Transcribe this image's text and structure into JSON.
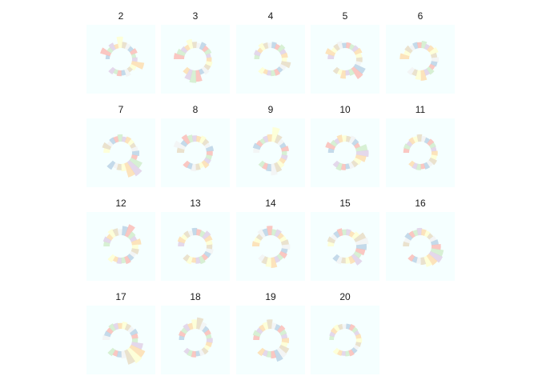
{
  "colors": {
    "panel_bg": "#f5ffff",
    "palette": [
      "#b3cde3",
      "#fbb4ae",
      "#ccebc5",
      "#decbe4",
      "#fed9a6",
      "#ffffcc",
      "#e5d8bd",
      "#f2f2f2"
    ]
  },
  "chart_data": {
    "type": "polar-bar small multiples",
    "grid": false,
    "legend": "none",
    "panels": [
      {
        "title": "2",
        "values": [
          0.2,
          0.5,
          0.25,
          0.35,
          0.22,
          0.55,
          0.3,
          0.28,
          0.24,
          0.32,
          0.2,
          0.26,
          0.6,
          0.3,
          0.22,
          0.35,
          0.25,
          0.28,
          0.22,
          0.3
        ]
      },
      {
        "title": "3",
        "values": [
          0.5,
          0.4,
          0.3,
          0.25,
          0.45,
          0.3,
          0.25,
          0.35,
          0.28,
          0.3,
          0.22,
          0.25,
          0.3,
          0.28,
          0.35,
          0.25,
          0.55,
          0.6,
          0.5,
          0.3
        ]
      },
      {
        "title": "4",
        "values": [
          0.25,
          0.3,
          0.22,
          0.35,
          0.28,
          0.25,
          0.3,
          0.25,
          0.35,
          0.28,
          0.3,
          0.25,
          0.45,
          0.3,
          0.25,
          0.3,
          0.28,
          0.25,
          0.22,
          0.3
        ]
      },
      {
        "title": "5",
        "values": [
          0.3,
          0.45,
          0.25,
          0.3,
          0.35,
          0.25,
          0.28,
          0.25,
          0.3,
          0.35,
          0.28,
          0.3,
          0.25,
          0.55,
          0.6,
          0.3,
          0.25,
          0.4,
          0.25,
          0.28
        ]
      },
      {
        "title": "6",
        "values": [
          0.45,
          0.3,
          0.35,
          0.25,
          0.3,
          0.28,
          0.35,
          0.25,
          0.3,
          0.4,
          0.28,
          0.35,
          0.3,
          0.25,
          0.35,
          0.3,
          0.5,
          0.45,
          0.3,
          0.35
        ]
      },
      {
        "title": "7",
        "values": [
          0.3,
          0.4,
          0.25,
          0.3,
          0.28,
          0.35,
          0.25,
          0.3,
          0.28,
          0.25,
          0.3,
          0.35,
          0.28,
          0.6,
          0.8,
          0.7,
          0.35,
          0.3,
          0.25,
          0.4
        ]
      },
      {
        "title": "8",
        "values": [
          0.35,
          0.55,
          0.3,
          0.45,
          0.35,
          0.3,
          0.28,
          0.35,
          0.3,
          0.25,
          0.35,
          0.3,
          0.28,
          0.3,
          0.35,
          0.25,
          0.3,
          0.35,
          0.28,
          0.3
        ]
      },
      {
        "title": "9",
        "values": [
          0.3,
          0.35,
          0.28,
          0.25,
          0.3,
          0.35,
          0.7,
          0.4,
          0.3,
          0.28,
          0.35,
          0.25,
          0.3,
          0.28,
          0.35,
          0.45,
          0.55,
          0.35,
          0.3,
          0.28
        ]
      },
      {
        "title": "10",
        "values": [
          0.28,
          0.45,
          0.3,
          0.25,
          0.35,
          0.3,
          0.28,
          0.35,
          0.3,
          0.25,
          0.55,
          0.6,
          0.5,
          0.35,
          0.3,
          0.28,
          0.25,
          0.3,
          0.35,
          0.28
        ]
      },
      {
        "title": "11",
        "values": [
          0.28,
          0.3,
          0.25,
          0.3,
          0.28,
          0.35,
          0.28,
          0.25,
          0.3,
          0.28,
          0.25,
          0.3,
          0.28,
          0.35,
          0.28,
          0.3,
          0.25,
          0.3,
          0.28,
          0.25
        ]
      },
      {
        "title": "12",
        "values": [
          0.3,
          0.35,
          0.28,
          0.4,
          0.35,
          0.3,
          0.45,
          0.6,
          0.35,
          0.3,
          0.45,
          0.3,
          0.35,
          0.28,
          0.3,
          0.35,
          0.28,
          0.3,
          0.25,
          0.35
        ]
      },
      {
        "title": "13",
        "values": [
          0.3,
          0.35,
          0.28,
          0.3,
          0.25,
          0.35,
          0.3,
          0.28,
          0.4,
          0.35,
          0.3,
          0.28,
          0.35,
          0.3,
          0.28,
          0.35,
          0.3,
          0.25,
          0.35,
          0.3
        ]
      },
      {
        "title": "14",
        "values": [
          0.35,
          0.3,
          0.28,
          0.4,
          0.35,
          0.45,
          0.3,
          0.35,
          0.28,
          0.3,
          0.35,
          0.4,
          0.3,
          0.35,
          0.28,
          0.3,
          0.5,
          0.45,
          0.35,
          0.3
        ]
      },
      {
        "title": "15",
        "values": [
          0.3,
          0.35,
          0.28,
          0.3,
          0.35,
          0.28,
          0.3,
          0.25,
          0.35,
          0.55,
          0.6,
          0.5,
          0.45,
          0.35,
          0.55,
          0.35,
          0.3,
          0.28,
          0.35,
          0.3
        ]
      },
      {
        "title": "16",
        "values": [
          0.3,
          0.28,
          0.35,
          0.3,
          0.28,
          0.35,
          0.3,
          0.28,
          0.25,
          0.3,
          0.35,
          0.45,
          0.6,
          0.65,
          0.55,
          0.5,
          0.35,
          0.3,
          0.28,
          0.3
        ]
      },
      {
        "title": "17",
        "values": [
          0.35,
          0.3,
          0.28,
          0.35,
          0.3,
          0.28,
          0.35,
          0.3,
          0.28,
          0.35,
          0.3,
          0.28,
          0.55,
          0.75,
          0.8,
          0.7,
          0.35,
          0.3,
          0.28,
          0.35
        ]
      },
      {
        "title": "18",
        "values": [
          0.25,
          0.3,
          0.28,
          0.35,
          0.3,
          0.45,
          0.55,
          0.4,
          0.3,
          0.28,
          0.25,
          0.3,
          0.28,
          0.25,
          0.3,
          0.28,
          0.25,
          0.3,
          0.28,
          0.25
        ]
      },
      {
        "title": "19",
        "values": [
          0.3,
          0.35,
          0.28,
          0.3,
          0.35,
          0.45,
          0.3,
          0.28,
          0.35,
          0.3,
          0.28,
          0.35,
          0.3,
          0.45,
          0.5,
          0.55,
          0.35,
          0.3,
          0.28,
          0.35
        ]
      },
      {
        "title": "20",
        "values": [
          0.22,
          0.25,
          0.28,
          0.3,
          0.25,
          0.22,
          0.25,
          0.28,
          0.25,
          0.22,
          0.25,
          0.28,
          0.25,
          0.22,
          0.25,
          0.28,
          0.25,
          0.22,
          0.25,
          0.28
        ]
      }
    ]
  }
}
